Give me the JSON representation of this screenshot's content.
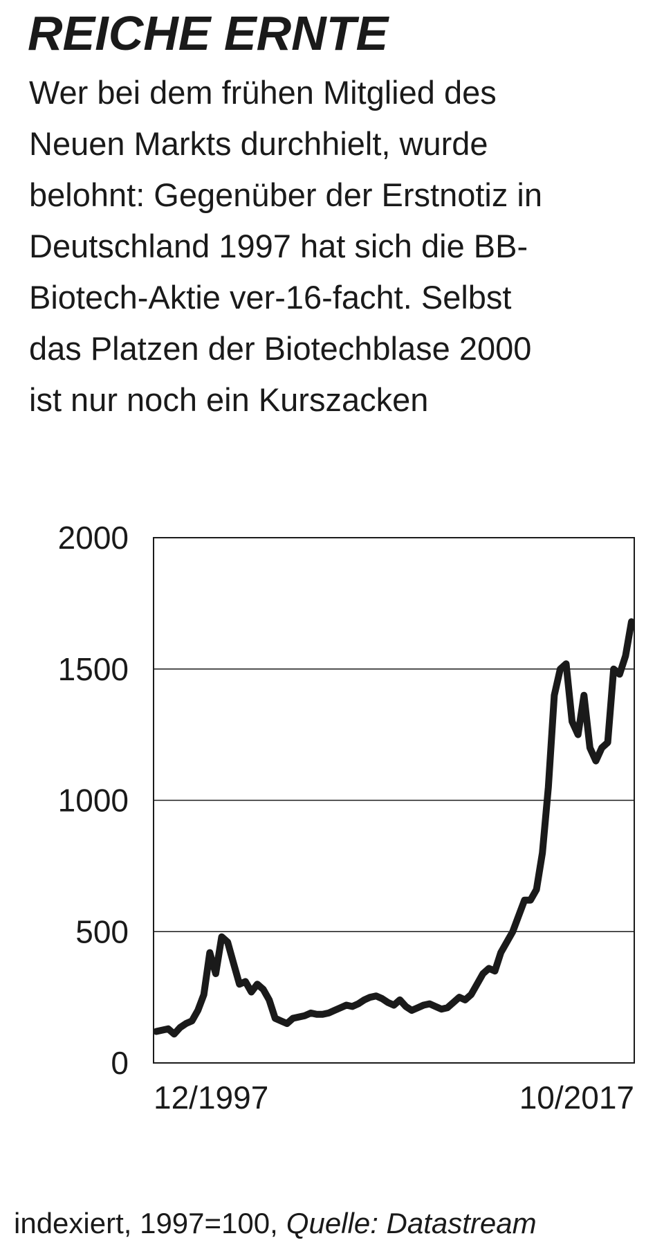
{
  "title": "REICHE ERNTE",
  "subtitle_lines": [
    "Wer bei dem frühen Mitglied des",
    "Neuen Markts durchhielt, wurde",
    "belohnt: Gegenüber der Erstnotiz in",
    "Deutschland 1997 hat sich die BB-",
    "Biotech-Aktie ver-16-facht. Selbst",
    "das Platzen der Biotechblase 2000",
    "ist nur noch ein Kurszacken"
  ],
  "chart_data": {
    "type": "line",
    "categories": [
      "12/1997",
      null,
      null,
      null,
      null,
      null,
      null,
      null,
      null,
      null,
      null,
      null,
      null,
      null,
      null,
      null,
      null,
      null,
      null,
      null,
      null,
      null,
      null,
      null,
      null,
      null,
      null,
      null,
      null,
      null,
      null,
      null,
      null,
      null,
      null,
      null,
      null,
      null,
      null,
      null,
      null,
      null,
      null,
      null,
      null,
      null,
      null,
      null,
      null,
      null,
      null,
      null,
      null,
      null,
      null,
      null,
      null,
      null,
      null,
      null,
      null,
      null,
      null,
      null,
      null,
      null,
      null,
      null,
      null,
      null,
      null,
      null,
      null,
      null,
      null,
      null,
      null,
      null,
      null,
      null,
      "10/2017"
    ],
    "values": [
      120,
      125,
      130,
      110,
      135,
      150,
      160,
      200,
      260,
      420,
      340,
      480,
      460,
      380,
      300,
      310,
      270,
      300,
      280,
      240,
      170,
      160,
      150,
      170,
      175,
      180,
      190,
      185,
      185,
      190,
      200,
      210,
      220,
      215,
      225,
      240,
      250,
      255,
      245,
      230,
      220,
      240,
      215,
      200,
      210,
      220,
      225,
      215,
      205,
      210,
      230,
      250,
      240,
      260,
      300,
      340,
      360,
      350,
      420,
      460,
      500,
      560,
      620,
      620,
      660,
      800,
      1050,
      1400,
      1500,
      1520,
      1300,
      1250,
      1400,
      1200,
      1150,
      1200,
      1220,
      1500,
      1480,
      1550,
      1680
    ],
    "color": "#1a1a1a",
    "ylim": [
      0,
      2000
    ],
    "yticks": [
      0,
      500,
      1000,
      1500,
      2000
    ],
    "grid": true
  },
  "footer": {
    "note": "indexiert, 1997=100,",
    "source": "Quelle: Datastream"
  }
}
